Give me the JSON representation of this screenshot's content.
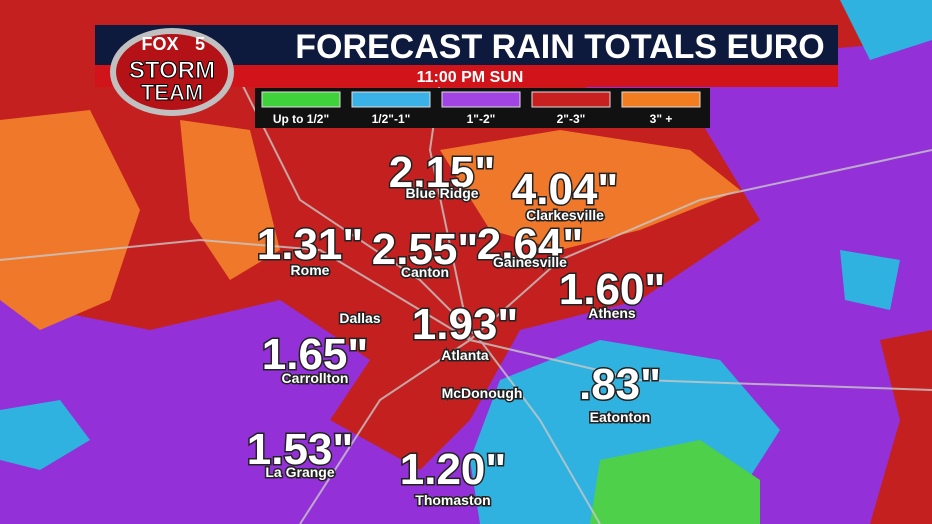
{
  "header": {
    "logo": {
      "brand": "FOX",
      "channel": "5",
      "line1": "STORM",
      "line2": "TEAM"
    },
    "title": "FORECAST RAIN TOTALS EURO",
    "time": "11:00 PM  SUN"
  },
  "legend": [
    "Up to 1/2\"",
    "1/2\"-1\"",
    "1\"-2\"",
    "2\"-3\"",
    "3\" +"
  ],
  "cities": [
    {
      "name": "Blue Ridge",
      "value": "2.15\""
    },
    {
      "name": "Clarkesville",
      "value": "4.04\""
    },
    {
      "name": "Rome",
      "value": "1.31\""
    },
    {
      "name": "Canton",
      "value": "2.55\""
    },
    {
      "name": "Gainesville",
      "value": "2.64\""
    },
    {
      "name": "Athens",
      "value": "1.60\""
    },
    {
      "name": "Dallas"
    },
    {
      "name": "Atlanta",
      "value": "1.93\""
    },
    {
      "name": "Carrollton",
      "value": "1.65\""
    },
    {
      "name": "McDonough"
    },
    {
      "name": "Eatonton",
      "value": ".83\""
    },
    {
      "name": "La Grange",
      "value": "1.53\""
    },
    {
      "name": "Thomaston",
      "value": "1.20\""
    }
  ]
}
